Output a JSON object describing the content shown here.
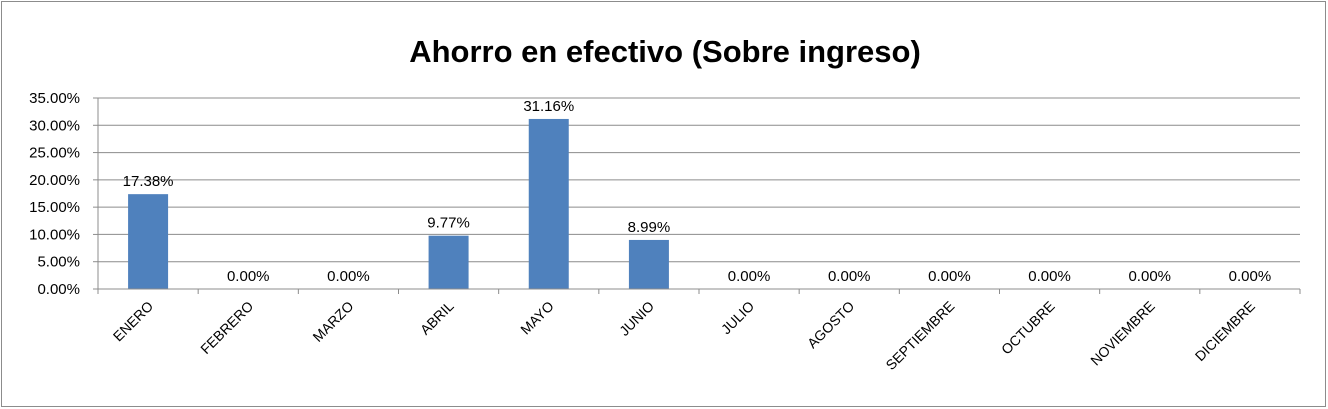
{
  "chart_data": {
    "type": "bar",
    "title": "Ahorro en efectivo (Sobre ingreso)",
    "categories": [
      "ENERO",
      "FEBRERO",
      "MARZO",
      "ABRIL",
      "MAYO",
      "JUNIO",
      "JULIO",
      "AGOSTO",
      "SEPTIEMBRE",
      "OCTUBRE",
      "NOVIEMBRE",
      "DICIEMBRE"
    ],
    "values": [
      17.38,
      0,
      0,
      9.77,
      31.16,
      8.99,
      0,
      0,
      0,
      0,
      0,
      0
    ],
    "data_labels": [
      "17.38%",
      "0.00%",
      "0.00%",
      "9.77%",
      "31.16%",
      "8.99%",
      "0.00%",
      "0.00%",
      "0.00%",
      "0.00%",
      "0.00%",
      "0.00%"
    ],
    "y_ticks": [
      "0.00%",
      "5.00%",
      "10.00%",
      "15.00%",
      "20.00%",
      "25.00%",
      "30.00%",
      "35.00%"
    ],
    "ylim": [
      0,
      35
    ],
    "ystep": 5,
    "grid": true,
    "legend": "none",
    "bar_color": "#4f81bd"
  }
}
